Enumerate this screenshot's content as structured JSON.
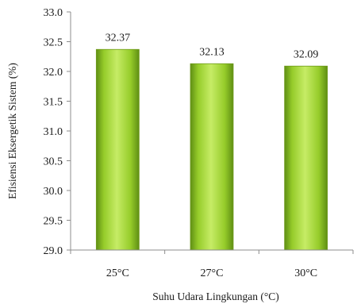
{
  "chart_data": {
    "type": "bar",
    "categories": [
      "25°C",
      "27°C",
      "30°C"
    ],
    "values": [
      32.37,
      32.13,
      32.09
    ],
    "data_labels": [
      "32.37",
      "32.13",
      "32.09"
    ],
    "title": "",
    "xlabel": "Suhu Udara Lingkungan (°C)",
    "ylabel": "Efisiensi Eksergetik Sistem (%)",
    "ylim": [
      29.0,
      33.0
    ],
    "yticks": [
      29.0,
      29.5,
      30.0,
      30.5,
      31.0,
      31.5,
      32.0,
      32.5,
      33.0
    ],
    "ytick_labels": [
      "29.0",
      "29.5",
      "30.0",
      "30.5",
      "31.0",
      "31.5",
      "32.0",
      "32.5",
      "33.0"
    ],
    "grid": false,
    "legend": "none",
    "colors": {
      "bar_light": "#c6ec66",
      "bar_mid": "#96cc2a",
      "bar_dark": "#5f8f14",
      "axis": "#8c8c8c"
    }
  }
}
